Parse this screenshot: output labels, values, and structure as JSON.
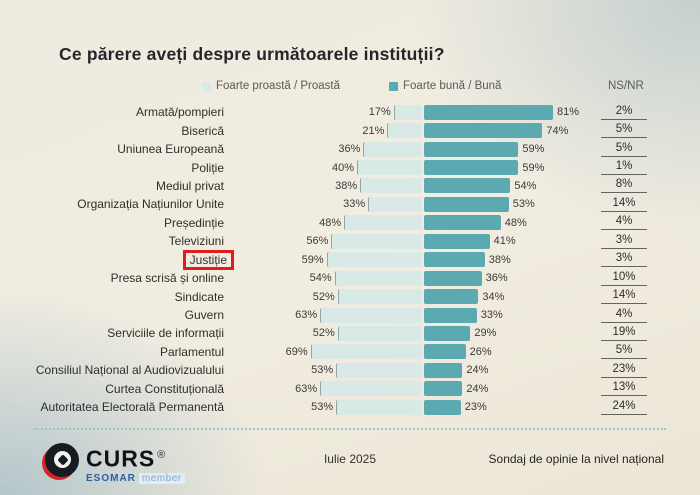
{
  "title": "Ce părere aveți despre următoarele instituții?",
  "legend": {
    "bad_label": "Foarte proastă / Proastă",
    "good_label": "Foarte bună / Bună",
    "nsnr_label": "NS/NR"
  },
  "colors": {
    "bad_bar": "#d9eae6",
    "good_bar": "#5ba9b1",
    "highlight_box": "#e31b1b"
  },
  "chart_data": {
    "type": "bar",
    "orientation": "horizontal-diverging",
    "unit": "%",
    "title": "Ce părere aveți despre următoarele instituții?",
    "categories": [
      "Armată/pompieri",
      "Biserică",
      "Uniunea Europeană",
      "Poliție",
      "Mediul privat",
      "Organizația Națiunilor Unite",
      "Președinție",
      "Televiziuni",
      "Justiție",
      "Presa scrisă și online",
      "Sindicate",
      "Guvern",
      "Serviciile de informații",
      "Parlamentul",
      "Consiliul Național al Audiovizualului",
      "Curtea Constituțională",
      "Autoritatea Electorală Permanentă"
    ],
    "series": [
      {
        "name": "Foarte proastă / Proastă",
        "values": [
          17,
          21,
          36,
          40,
          38,
          33,
          48,
          56,
          59,
          54,
          52,
          63,
          52,
          69,
          53,
          63,
          53
        ]
      },
      {
        "name": "Foarte bună / Bună",
        "values": [
          81,
          74,
          59,
          59,
          54,
          53,
          48,
          41,
          38,
          36,
          34,
          33,
          29,
          26,
          24,
          24,
          23
        ]
      },
      {
        "name": "NS/NR",
        "values": [
          2,
          5,
          5,
          1,
          8,
          14,
          4,
          3,
          3,
          10,
          14,
          4,
          19,
          5,
          23,
          13,
          24
        ]
      }
    ],
    "highlighted_category": "Justiție",
    "legend_position": "top"
  },
  "footer": {
    "logo_word": "CURS",
    "logo_reg": "®",
    "logo_org": "ESOMAR",
    "logo_member": "member",
    "date": "Iulie 2025",
    "note": "Sondaj de opinie la nivel național"
  }
}
